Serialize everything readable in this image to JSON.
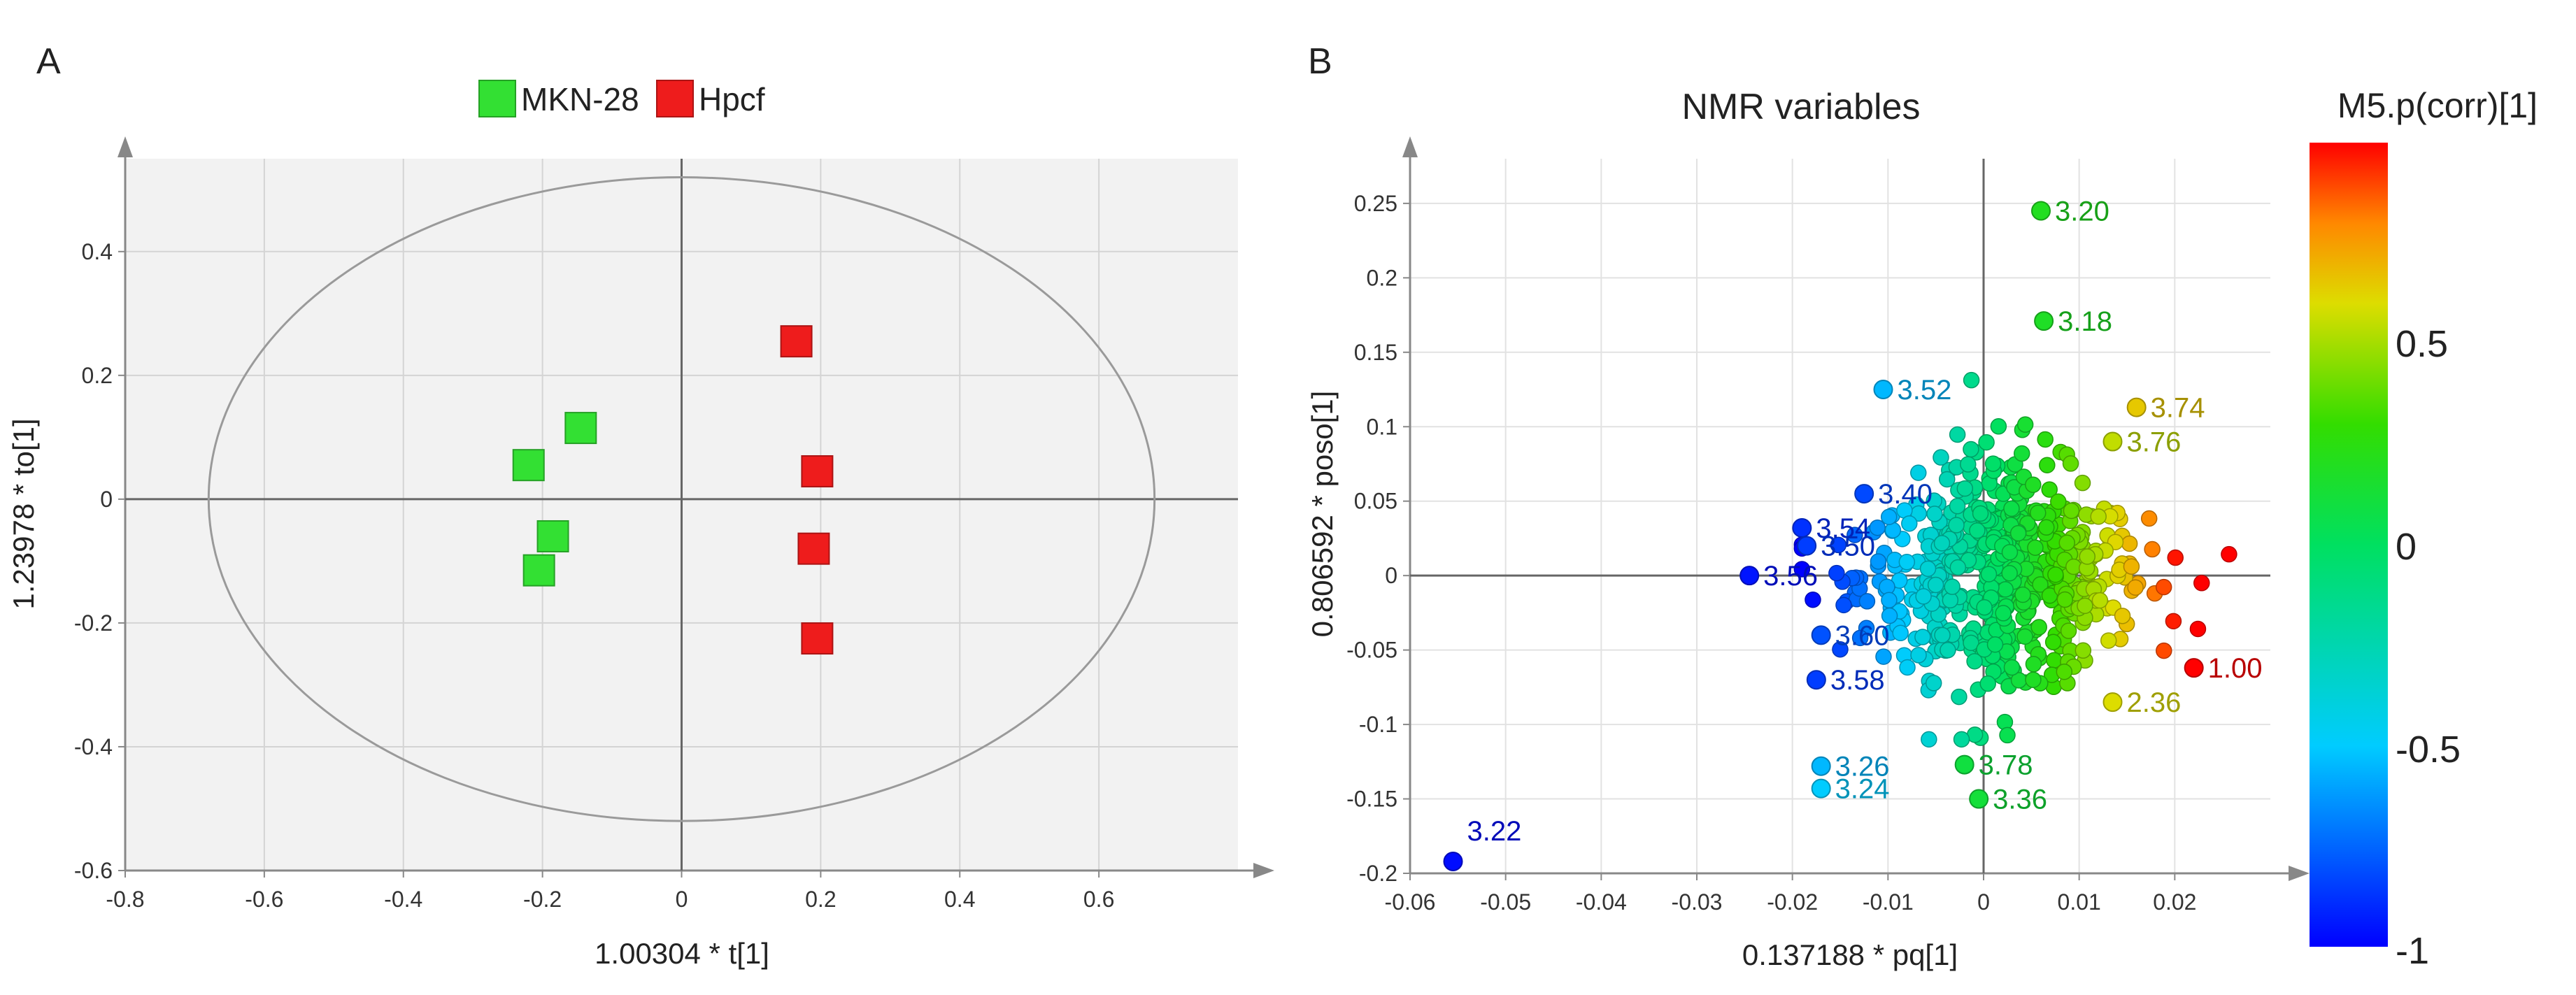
{
  "panels": {
    "a": {
      "letter": "A"
    },
    "b": {
      "letter": "B"
    }
  },
  "colorbar": {
    "title": "M5.p(corr)[1]",
    "tick_labels": [
      "0.5",
      "0",
      "-0.5",
      "-1"
    ]
  },
  "chart_data": [
    {
      "type": "scatter",
      "panel": "A",
      "xlabel": "1.00304 * t[1]",
      "ylabel": "1.23978 * to[1]",
      "xlim": [
        -0.8,
        0.8
      ],
      "ylim": [
        -0.6,
        0.55
      ],
      "xticks": [
        -0.8,
        -0.6,
        -0.4,
        -0.2,
        0,
        0.2,
        0.4,
        0.6
      ],
      "xtick_labels": [
        "-0.8",
        "-0.6",
        "-0.4",
        "-0.2",
        "0",
        "0.2",
        "0.4",
        "0.6"
      ],
      "yticks": [
        -0.6,
        -0.4,
        -0.2,
        0,
        0.2,
        0.4
      ],
      "ytick_labels": [
        "-0.6",
        "-0.4",
        "-0.2",
        "0",
        "0.2",
        "0.4"
      ],
      "grid": true,
      "background": "#f2f2f2",
      "legend_position": "top-center",
      "ellipse": {
        "center": [
          0,
          0
        ],
        "rx": 0.68,
        "ry": 0.52
      },
      "series": [
        {
          "name": "MKN-28",
          "color": "#33e033",
          "marker": "square",
          "points": [
            [
              -0.145,
              0.115
            ],
            [
              -0.22,
              0.055
            ],
            [
              -0.185,
              -0.06
            ],
            [
              -0.205,
              -0.115
            ]
          ]
        },
        {
          "name": "Hpcf",
          "color": "#ee1c1c",
          "marker": "square",
          "points": [
            [
              0.165,
              0.255
            ],
            [
              0.195,
              0.045
            ],
            [
              0.19,
              -0.08
            ],
            [
              0.195,
              -0.225
            ]
          ]
        }
      ]
    },
    {
      "type": "scatter",
      "panel": "B",
      "title": "NMR variables",
      "xlabel": "0.137188 * pq[1]",
      "ylabel": "0.806592 * poso[1]",
      "xlim": [
        -0.06,
        0.03
      ],
      "ylim": [
        -0.2,
        0.28
      ],
      "xticks": [
        -0.06,
        -0.05,
        -0.04,
        -0.03,
        -0.02,
        -0.01,
        0,
        0.01,
        0.02
      ],
      "xtick_labels": [
        "-0.06",
        "-0.05",
        "-0.04",
        "-0.03",
        "-0.02",
        "-0.01",
        "0",
        "0.01",
        "0.02"
      ],
      "yticks": [
        -0.2,
        -0.15,
        -0.1,
        -0.05,
        0,
        0.05,
        0.1,
        0.15,
        0.2,
        0.25
      ],
      "ytick_labels": [
        "-0.2",
        "-0.15",
        "-0.1",
        "-0.05",
        "0",
        "0.05",
        "0.1",
        "0.15",
        "0.2",
        "0.25"
      ],
      "grid": true,
      "color_variable": "M5.p(corr)[1]",
      "color_range": [
        -1,
        0.95
      ],
      "labeled_points": [
        {
          "x": -0.0555,
          "y": -0.192,
          "c": -0.97,
          "label": "3.22"
        },
        {
          "x": 0.006,
          "y": 0.245,
          "c": 0.2,
          "label": "3.20"
        },
        {
          "x": 0.0063,
          "y": 0.171,
          "c": 0.18,
          "label": "3.18"
        },
        {
          "x": -0.0245,
          "y": 0.0,
          "c": -0.95,
          "label": "3.56"
        },
        {
          "x": -0.019,
          "y": 0.032,
          "c": -0.88,
          "label": "3.54"
        },
        {
          "x": -0.0185,
          "y": 0.02,
          "c": -0.85,
          "label": "3.50"
        },
        {
          "x": -0.0125,
          "y": 0.055,
          "c": -0.82,
          "label": "3.40"
        },
        {
          "x": -0.0105,
          "y": 0.125,
          "c": -0.55,
          "label": "3.52"
        },
        {
          "x": -0.017,
          "y": -0.04,
          "c": -0.8,
          "label": "3.60"
        },
        {
          "x": -0.0175,
          "y": -0.07,
          "c": -0.85,
          "label": "3.58"
        },
        {
          "x": -0.017,
          "y": -0.128,
          "c": -0.55,
          "label": "3.26"
        },
        {
          "x": -0.017,
          "y": -0.143,
          "c": -0.5,
          "label": "3.24"
        },
        {
          "x": -0.002,
          "y": -0.127,
          "c": 0.1,
          "label": "3.78"
        },
        {
          "x": -0.0005,
          "y": -0.15,
          "c": 0.12,
          "label": "3.36"
        },
        {
          "x": 0.016,
          "y": 0.113,
          "c": 0.65,
          "label": "3.74"
        },
        {
          "x": 0.0135,
          "y": 0.09,
          "c": 0.55,
          "label": "3.76"
        },
        {
          "x": 0.0135,
          "y": -0.085,
          "c": 0.6,
          "label": "2.36"
        },
        {
          "x": 0.022,
          "y": -0.062,
          "c": 0.95,
          "label": "1.00"
        }
      ],
      "cloud": {
        "count": 560,
        "x_mean": 0.002,
        "x_sd": 0.0075,
        "y_mean": 0.0,
        "y_sd": 0.045,
        "note": "dense cluster of unlabeled points with overlapping numeric labels around the origin"
      }
    }
  ]
}
